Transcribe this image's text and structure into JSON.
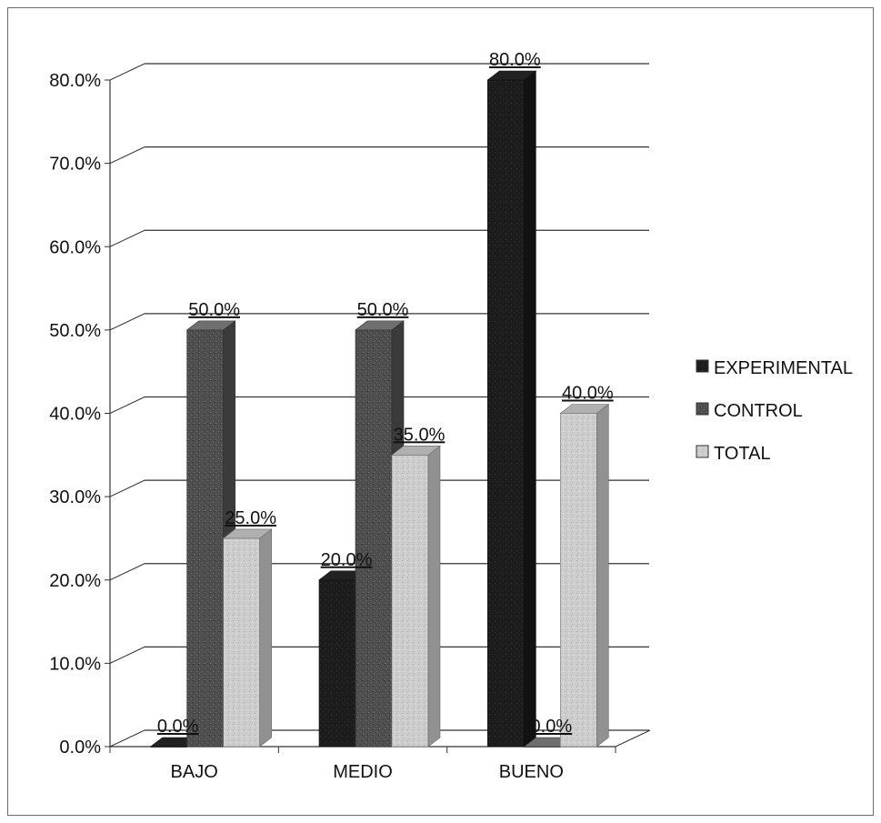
{
  "chart_data": {
    "type": "bar",
    "categories": [
      "BAJO",
      "MEDIO",
      "BUENO"
    ],
    "series": [
      {
        "name": "EXPERIMENTAL",
        "values": [
          0.0,
          20.0,
          80.0
        ],
        "labels": [
          "0.0%",
          "20.0%",
          "80.0%"
        ],
        "color": "#1a1a1a"
      },
      {
        "name": "CONTROL",
        "values": [
          50.0,
          50.0,
          0.0
        ],
        "labels": [
          "50.0%",
          "50.0%",
          "0.0%"
        ],
        "color": "#555555"
      },
      {
        "name": "TOTAL",
        "values": [
          25.0,
          35.0,
          40.0
        ],
        "labels": [
          "25.0%",
          "35.0%",
          "40.0%"
        ],
        "color": "#cfcfcf"
      }
    ],
    "y_ticks": [
      "0.0%",
      "10.0%",
      "20.0%",
      "30.0%",
      "40.0%",
      "50.0%",
      "60.0%",
      "70.0%",
      "80.0%"
    ],
    "ylim": [
      0,
      80
    ],
    "grid": true,
    "legend_position": "right",
    "style": "3d-clustered-column"
  }
}
